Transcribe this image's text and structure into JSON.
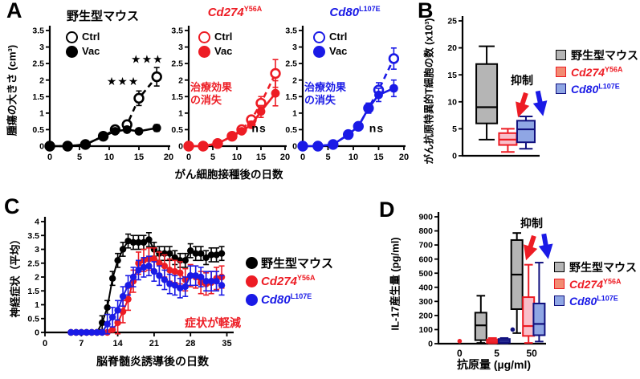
{
  "colors": {
    "black": "#000000",
    "red": "#ed1c24",
    "blue": "#1a1ae6",
    "navy": "#10107e",
    "gray_fill": "#b5b5b5",
    "pink_fill": "#f9bfca",
    "blue_fill": "#8fa6e4",
    "salmon_swatch": "#f28c73",
    "white": "#ffffff"
  },
  "genes": {
    "cd274": {
      "base": "Cd274",
      "sup": "Y56A"
    },
    "cd80": {
      "base": "Cd80",
      "sup": "L107E"
    }
  },
  "panels": {
    "a": {
      "label": "A",
      "wt_title": "野生型マウス",
      "ylabel": "腫瘍の大きさ (cm³)",
      "xlabel": "がん細胞接種後の日数",
      "legend_ctrl": "Ctrl",
      "legend_vac": "Vac",
      "loss_line1": "治療効果",
      "loss_line2": "の消失"
    },
    "b": {
      "label": "B",
      "ylabel": "がん抗原特異的T細胞の数 (x10³)",
      "suppression": "抑制",
      "legend_wt": "野生型マウス"
    },
    "c": {
      "label": "C",
      "ylabel": "神経症状（平均）",
      "xlabel": "脳脊髄炎誘導後の日数",
      "legend_wt": "野生型マウス",
      "reduced": "症状が軽減"
    },
    "d": {
      "label": "D",
      "ylabel": "IL-17産生量 (pg/ml)",
      "xlabel": "抗原量 (µg/ml)",
      "suppression": "抑制",
      "legend_wt": "野生型マウス"
    }
  },
  "chart_data": {
    "a1": {
      "type": "line",
      "title": "野生型マウス",
      "xlabel": "がん細胞接種後の日数",
      "ylabel": "腫瘍の大きさ (cm³)",
      "xlim": [
        0,
        20
      ],
      "ylim": [
        0,
        3.5
      ],
      "xticks": [
        0,
        5,
        10,
        15,
        20
      ],
      "yticks": [
        0,
        0.5,
        1,
        1.5,
        2,
        2.5,
        3,
        3.5
      ],
      "x": [
        0,
        3,
        6,
        9,
        11,
        13,
        15,
        18
      ],
      "series": [
        {
          "name": "Ctrl",
          "color": "#000000",
          "marker": "open",
          "dash": true,
          "y": [
            0,
            0,
            0.05,
            0.3,
            0.5,
            0.65,
            1.45,
            2.1
          ],
          "err": [
            0,
            0,
            0,
            0,
            0.06,
            0.1,
            0.22,
            0.28
          ]
        },
        {
          "name": "Vac",
          "color": "#000000",
          "marker": "filled",
          "dash": false,
          "y": [
            0,
            0,
            0.05,
            0.3,
            0.45,
            0.5,
            0.45,
            0.55
          ],
          "err": [
            0,
            0,
            0,
            0.05,
            0.06,
            0.08,
            0.08,
            0.1
          ]
        }
      ],
      "annotations": [
        {
          "text": "★★★",
          "x": 12.3,
          "y": 1.85,
          "color": "#000000",
          "size": 14
        },
        {
          "text": "★★★",
          "x": 16.4,
          "y": 2.52,
          "color": "#000000",
          "size": 14
        }
      ]
    },
    "a2": {
      "type": "line",
      "title": "Cd274 Y56A",
      "xlim": [
        0,
        20
      ],
      "ylim": [
        0,
        3.5
      ],
      "xticks": [
        0,
        5,
        10,
        15,
        20
      ],
      "yticks": [
        0,
        0.5,
        1,
        1.5,
        2,
        2.5,
        3,
        3.5
      ],
      "x": [
        0,
        3,
        6,
        9,
        11,
        13,
        15,
        18
      ],
      "series": [
        {
          "name": "Ctrl",
          "color": "#ed1c24",
          "marker": "open",
          "dash": true,
          "y": [
            0,
            0,
            0.08,
            0.3,
            0.5,
            0.8,
            1.3,
            2.2
          ],
          "err": [
            0,
            0,
            0,
            0.05,
            0.08,
            0.12,
            0.2,
            0.42
          ]
        },
        {
          "name": "Vac",
          "color": "#ed1c24",
          "marker": "filled",
          "dash": false,
          "y": [
            0,
            0,
            0.08,
            0.3,
            0.45,
            0.65,
            1.05,
            1.6
          ],
          "err": [
            0,
            0,
            0,
            0.05,
            0.08,
            0.1,
            0.18,
            0.38
          ]
        }
      ],
      "annotations": [
        {
          "text": "ns",
          "x": 14.6,
          "y": 0.42,
          "color": "#000000",
          "size": 14
        }
      ]
    },
    "a3": {
      "type": "line",
      "title": "Cd80 L107E",
      "xlim": [
        0,
        20
      ],
      "ylim": [
        0,
        3.5
      ],
      "xticks": [
        0,
        5,
        10,
        15,
        20
      ],
      "yticks": [
        0,
        0.5,
        1,
        1.5,
        2,
        2.5,
        3,
        3.5
      ],
      "x": [
        0,
        3,
        6,
        9,
        11,
        13,
        15,
        18
      ],
      "series": [
        {
          "name": "Ctrl",
          "color": "#1a1ae6",
          "marker": "open",
          "dash": true,
          "y": [
            0,
            0,
            0.05,
            0.35,
            0.6,
            1.15,
            1.7,
            2.65
          ],
          "err": [
            0,
            0,
            0,
            0.05,
            0.08,
            0.15,
            0.22,
            0.32
          ]
        },
        {
          "name": "Vac",
          "color": "#1a1ae6",
          "marker": "filled",
          "dash": false,
          "y": [
            0,
            0,
            0.05,
            0.35,
            0.6,
            1.15,
            1.55,
            1.75
          ],
          "err": [
            0,
            0,
            0,
            0.05,
            0.08,
            0.15,
            0.2,
            0.25
          ]
        }
      ],
      "annotations": [
        {
          "text": "ns",
          "x": 14.6,
          "y": 0.42,
          "color": "#000000",
          "size": 14
        }
      ]
    },
    "b": {
      "type": "box",
      "ylabel": "がん抗原特異的T細胞の数 (x10³)",
      "ylim": [
        0,
        25
      ],
      "yticks": [
        0,
        5,
        10,
        15,
        20,
        25
      ],
      "boxes": [
        {
          "name": "野生型マウス",
          "pos": 0.32,
          "w": 26,
          "low": 3,
          "q1": 6,
          "med": 9,
          "q3": 17,
          "high": 20.3,
          "fill": "#b5b5b5",
          "stroke": "#000000"
        },
        {
          "name": "Cd274 Y56A",
          "pos": 0.6,
          "w": 22,
          "low": 0.7,
          "q1": 2,
          "med": 3,
          "q3": 4.2,
          "high": 5,
          "fill": "#f9bfca",
          "stroke": "#ed1c24"
        },
        {
          "name": "Cd80 L107E",
          "pos": 0.84,
          "w": 22,
          "low": 1.3,
          "q1": 2.5,
          "med": 4.9,
          "q3": 6.5,
          "high": 7.3,
          "fill": "#8fa6e4",
          "stroke": "#10107e"
        }
      ]
    },
    "c": {
      "type": "line",
      "xlabel": "脳脊髄炎誘導後の日数",
      "ylabel": "神経症状（平均）",
      "xlim": [
        0,
        36
      ],
      "ylim": [
        0,
        4
      ],
      "xticks": [
        0,
        7,
        14,
        21,
        28,
        35
      ],
      "yticks": [
        0,
        0.5,
        1,
        1.5,
        2,
        2.5,
        3,
        3.5,
        4
      ],
      "x": [
        5,
        6,
        7,
        8,
        9,
        10,
        11,
        12,
        13,
        14,
        15,
        16,
        17,
        18,
        19,
        20,
        21,
        22,
        23,
        24,
        25,
        26,
        27,
        28,
        29,
        30,
        31,
        32,
        33,
        34
      ],
      "series": [
        {
          "name": "野生型マウス",
          "color": "#000000",
          "marker": "filled",
          "dash": false,
          "err_const": 0.25,
          "y": [
            0,
            0,
            0,
            0,
            0,
            0,
            0.35,
            0.9,
            1.95,
            2.6,
            3.0,
            3.3,
            3.25,
            3.25,
            3.25,
            3.35,
            3.0,
            2.85,
            2.85,
            2.85,
            2.7,
            2.6,
            2.6,
            2.95,
            2.85,
            2.85,
            2.7,
            2.8,
            2.8,
            2.85
          ]
        },
        {
          "name": "Cd274 Y56A",
          "color": "#ed1c24",
          "marker": "filled",
          "dash": false,
          "err_const": 0.4,
          "y": [
            0,
            0,
            0,
            0,
            0,
            0,
            0,
            0,
            0.1,
            0.35,
            0.75,
            1.2,
            1.85,
            2.5,
            2.6,
            2.65,
            2.65,
            2.5,
            2.4,
            2.25,
            2.2,
            2.15,
            1.9,
            2.05,
            2.0,
            1.8,
            1.75,
            1.8,
            1.95,
            2.0
          ]
        },
        {
          "name": "Cd80 L107E",
          "color": "#1a1ae6",
          "marker": "filled",
          "dash": false,
          "err_const": 0.35,
          "y": [
            0,
            0,
            0,
            0,
            0,
            0,
            0,
            0.3,
            0.55,
            0.8,
            1.3,
            1.7,
            2.0,
            2.25,
            2.35,
            2.4,
            2.2,
            2.05,
            1.9,
            1.75,
            1.7,
            1.6,
            1.65,
            2.05,
            2.05,
            2.0,
            1.85,
            1.85,
            1.85,
            1.7
          ]
        }
      ],
      "annotations": []
    },
    "d": {
      "type": "box",
      "xlabel": "抗原量 (µg/ml)",
      "ylabel": "IL-17産生量 (pg/ml)",
      "ylim": [
        0,
        900
      ],
      "yticks": [
        0,
        100,
        200,
        300,
        400,
        500,
        600,
        700,
        800,
        900
      ],
      "xlabels": [
        {
          "text": "0",
          "pos": 0.2
        },
        {
          "text": "5",
          "pos": 0.55
        },
        {
          "text": "50",
          "pos": 0.88
        }
      ],
      "boxes": [
        {
          "name": "野生型マウス 5",
          "pos": 0.4,
          "w": 14,
          "low": 5,
          "q1": 25,
          "med": 130,
          "q3": 220,
          "high": 340,
          "fill": "#b5b5b5",
          "stroke": "#000000"
        },
        {
          "name": "Cd274 Y56A 5",
          "pos": 0.51,
          "w": 14,
          "low": 3,
          "q1": 6,
          "med": 18,
          "q3": 30,
          "high": 40,
          "fill": "#f9bfca",
          "stroke": "#ed1c24"
        },
        {
          "name": "Cd80 L107E 5",
          "pos": 0.62,
          "w": 14,
          "low": 3,
          "q1": 7,
          "med": 20,
          "q3": 33,
          "high": 40,
          "fill": "#8fa6e4",
          "stroke": "#10107e"
        },
        {
          "name": "野生型マウス 50",
          "pos": 0.74,
          "w": 14,
          "low": 75,
          "q1": 245,
          "med": 490,
          "q3": 735,
          "high": 785,
          "fill": "#b5b5b5",
          "stroke": "#000000"
        },
        {
          "name": "Cd274 Y56A 50",
          "pos": 0.85,
          "w": 14,
          "low": 5,
          "q1": 55,
          "med": 125,
          "q3": 330,
          "high": 560,
          "fill": "#f9bfca",
          "stroke": "#ed1c24"
        },
        {
          "name": "Cd80 L107E 50",
          "pos": 0.95,
          "w": 14,
          "low": 15,
          "q1": 60,
          "med": 140,
          "q3": 285,
          "high": 575,
          "fill": "#8fa6e4",
          "stroke": "#10107e"
        }
      ],
      "points": [
        {
          "pos": 0.2,
          "y": 18,
          "color": "#ed1c24"
        },
        {
          "pos": 0.7,
          "y": 100,
          "color": "#10107e"
        }
      ]
    }
  }
}
